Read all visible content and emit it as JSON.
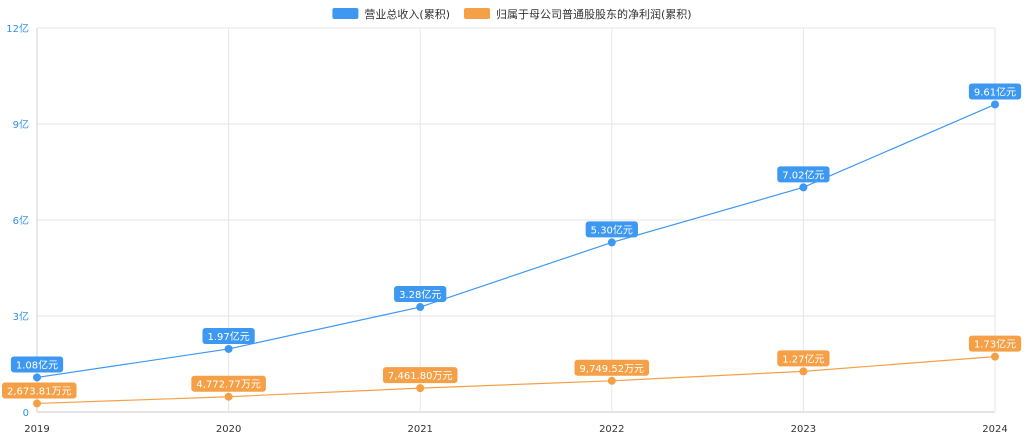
{
  "chart_data": {
    "type": "line",
    "categories": [
      "2019",
      "2020",
      "2021",
      "2022",
      "2023",
      "2024"
    ],
    "y_ticks": [
      "0",
      "3亿",
      "6亿",
      "9亿",
      "12亿"
    ],
    "ylim": [
      0,
      12
    ],
    "grid": true,
    "legend_position": "top-center",
    "series": [
      {
        "name": "营业总收入(累积)",
        "color": "#3d98f2",
        "values": [
          1.08,
          1.97,
          3.28,
          5.3,
          7.02,
          9.61
        ],
        "labels": [
          "1.08亿元",
          "1.97亿元",
          "3.28亿元",
          "5.30亿元",
          "7.02亿元",
          "9.61亿元"
        ]
      },
      {
        "name": "归属于母公司普通股股东的净利润(累积)",
        "color": "#f5a046",
        "values": [
          0.267381,
          0.477277,
          0.74618,
          0.974952,
          1.27,
          1.73
        ],
        "labels": [
          "2,673.81万元",
          "4,772.77万元",
          "7,461.80万元",
          "9,749.52万元",
          "1.27亿元",
          "1.73亿元"
        ]
      }
    ]
  }
}
